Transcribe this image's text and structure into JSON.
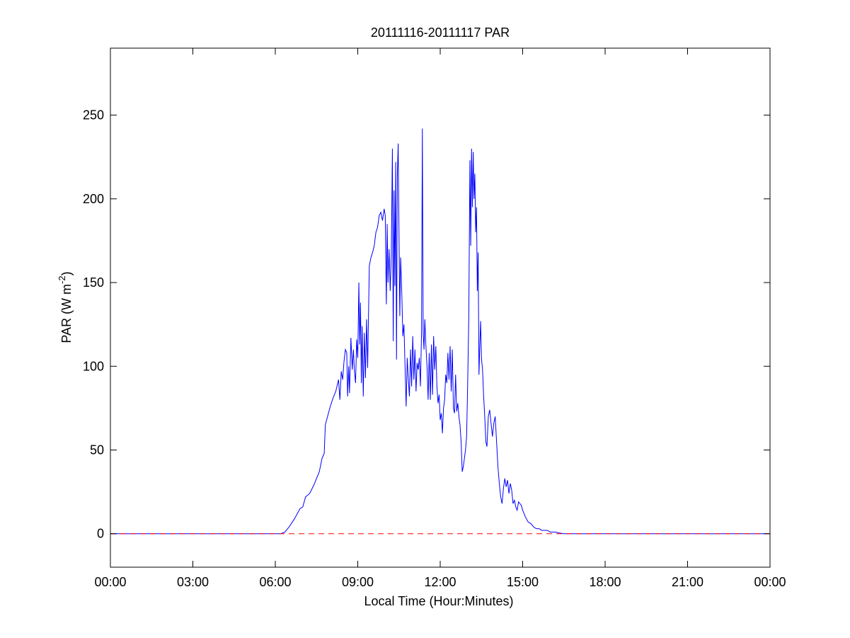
{
  "chart_data": {
    "type": "line",
    "title": "20111116-20111117 PAR",
    "xlabel": "Local Time (Hour:Minutes)",
    "ylabel": {
      "main": "PAR (W m",
      "superscript": "-2",
      "close": ")"
    },
    "x_unit": "hours",
    "xlim": [
      0,
      24
    ],
    "ylim": [
      -20,
      290
    ],
    "x_ticks": [
      0,
      3,
      6,
      9,
      12,
      15,
      18,
      21,
      24
    ],
    "x_tick_labels": [
      "00:00",
      "03:00",
      "06:00",
      "09:00",
      "12:00",
      "15:00",
      "18:00",
      "21:00",
      "00:00"
    ],
    "y_ticks": [
      0,
      50,
      100,
      150,
      200,
      250
    ],
    "y_tick_labels": [
      "0",
      "50",
      "100",
      "150",
      "200",
      "250"
    ],
    "grid": false,
    "series": [
      {
        "color": "#0000ff",
        "style": "solid",
        "points": [
          [
            0,
            0
          ],
          [
            6.2,
            0
          ],
          [
            6.35,
            1
          ],
          [
            6.5,
            4
          ],
          [
            6.7,
            9
          ],
          [
            6.9,
            15
          ],
          [
            7.0,
            16
          ],
          [
            7.1,
            22
          ],
          [
            7.25,
            24
          ],
          [
            7.4,
            29
          ],
          [
            7.5,
            33
          ],
          [
            7.6,
            37
          ],
          [
            7.7,
            45
          ],
          [
            7.78,
            48
          ],
          [
            7.82,
            65
          ],
          [
            7.9,
            70
          ],
          [
            8.0,
            76
          ],
          [
            8.1,
            81
          ],
          [
            8.2,
            85
          ],
          [
            8.3,
            92
          ],
          [
            8.35,
            80
          ],
          [
            8.4,
            97
          ],
          [
            8.45,
            92
          ],
          [
            8.5,
            103
          ],
          [
            8.55,
            110
          ],
          [
            8.6,
            108
          ],
          [
            8.63,
            82
          ],
          [
            8.67,
            100
          ],
          [
            8.7,
            84
          ],
          [
            8.75,
            117
          ],
          [
            8.8,
            98
          ],
          [
            8.84,
            110
          ],
          [
            8.88,
            97
          ],
          [
            8.92,
            90
          ],
          [
            8.96,
            116
          ],
          [
            9.0,
            105
          ],
          [
            9.04,
            150
          ],
          [
            9.07,
            113
          ],
          [
            9.1,
            138
          ],
          [
            9.13,
            90
          ],
          [
            9.16,
            124
          ],
          [
            9.2,
            82
          ],
          [
            9.24,
            120
          ],
          [
            9.28,
            93
          ],
          [
            9.32,
            128
          ],
          [
            9.36,
            99
          ],
          [
            9.42,
            160
          ],
          [
            9.48,
            165
          ],
          [
            9.54,
            168
          ],
          [
            9.6,
            172
          ],
          [
            9.66,
            180
          ],
          [
            9.72,
            183
          ],
          [
            9.78,
            190
          ],
          [
            9.84,
            192
          ],
          [
            9.9,
            187
          ],
          [
            9.96,
            194
          ],
          [
            10.0,
            190
          ],
          [
            10.04,
            137
          ],
          [
            10.07,
            185
          ],
          [
            10.1,
            150
          ],
          [
            10.14,
            170
          ],
          [
            10.18,
            145
          ],
          [
            10.22,
            166
          ],
          [
            10.26,
            230
          ],
          [
            10.29,
            115
          ],
          [
            10.32,
            205
          ],
          [
            10.35,
            148
          ],
          [
            10.38,
            222
          ],
          [
            10.41,
            104
          ],
          [
            10.44,
            214
          ],
          [
            10.47,
            233
          ],
          [
            10.5,
            180
          ],
          [
            10.53,
            130
          ],
          [
            10.56,
            165
          ],
          [
            10.6,
            145
          ],
          [
            10.64,
            118
          ],
          [
            10.68,
            125
          ],
          [
            10.72,
            100
          ],
          [
            10.76,
            76
          ],
          [
            10.8,
            105
          ],
          [
            10.84,
            92
          ],
          [
            10.88,
            82
          ],
          [
            10.92,
            110
          ],
          [
            10.96,
            88
          ],
          [
            11.0,
            118
          ],
          [
            11.04,
            92
          ],
          [
            11.08,
            110
          ],
          [
            11.12,
            85
          ],
          [
            11.16,
            102
          ],
          [
            11.2,
            98
          ],
          [
            11.24,
            105
          ],
          [
            11.28,
            88
          ],
          [
            11.32,
            120
          ],
          [
            11.35,
            242
          ],
          [
            11.38,
            120
          ],
          [
            11.41,
            110
          ],
          [
            11.44,
            128
          ],
          [
            11.48,
            112
          ],
          [
            11.52,
            100
          ],
          [
            11.56,
            80
          ],
          [
            11.6,
            108
          ],
          [
            11.64,
            80
          ],
          [
            11.68,
            113
          ],
          [
            11.72,
            83
          ],
          [
            11.76,
            118
          ],
          [
            11.8,
            98
          ],
          [
            11.84,
            112
          ],
          [
            11.88,
            88
          ],
          [
            11.92,
            78
          ],
          [
            11.96,
            83
          ],
          [
            12.0,
            68
          ],
          [
            12.04,
            72
          ],
          [
            12.08,
            60
          ],
          [
            12.12,
            75
          ],
          [
            12.16,
            80
          ],
          [
            12.2,
            95
          ],
          [
            12.24,
            90
          ],
          [
            12.28,
            108
          ],
          [
            12.32,
            92
          ],
          [
            12.36,
            112
          ],
          [
            12.4,
            85
          ],
          [
            12.44,
            110
          ],
          [
            12.48,
            75
          ],
          [
            12.52,
            72
          ],
          [
            12.56,
            95
          ],
          [
            12.6,
            73
          ],
          [
            12.64,
            78
          ],
          [
            12.68,
            70
          ],
          [
            12.72,
            65
          ],
          [
            12.76,
            55
          ],
          [
            12.8,
            37
          ],
          [
            12.84,
            40
          ],
          [
            12.88,
            45
          ],
          [
            12.92,
            50
          ],
          [
            12.96,
            58
          ],
          [
            13.0,
            90
          ],
          [
            13.04,
            130
          ],
          [
            13.08,
            223
          ],
          [
            13.11,
            172
          ],
          [
            13.14,
            230
          ],
          [
            13.17,
            195
          ],
          [
            13.2,
            228
          ],
          [
            13.23,
            200
          ],
          [
            13.26,
            215
          ],
          [
            13.29,
            180
          ],
          [
            13.32,
            195
          ],
          [
            13.35,
            145
          ],
          [
            13.38,
            168
          ],
          [
            13.41,
            95
          ],
          [
            13.44,
            112
          ],
          [
            13.47,
            127
          ],
          [
            13.5,
            105
          ],
          [
            13.54,
            98
          ],
          [
            13.58,
            82
          ],
          [
            13.62,
            70
          ],
          [
            13.66,
            55
          ],
          [
            13.7,
            52
          ],
          [
            13.75,
            70
          ],
          [
            13.8,
            74
          ],
          [
            13.85,
            66
          ],
          [
            13.9,
            58
          ],
          [
            13.95,
            66
          ],
          [
            14.0,
            70
          ],
          [
            14.05,
            55
          ],
          [
            14.1,
            40
          ],
          [
            14.15,
            30
          ],
          [
            14.2,
            22
          ],
          [
            14.25,
            18
          ],
          [
            14.3,
            27
          ],
          [
            14.35,
            33
          ],
          [
            14.4,
            28
          ],
          [
            14.45,
            32
          ],
          [
            14.5,
            24
          ],
          [
            14.55,
            30
          ],
          [
            14.6,
            26
          ],
          [
            14.65,
            18
          ],
          [
            14.7,
            20
          ],
          [
            14.75,
            16
          ],
          [
            14.8,
            14
          ],
          [
            14.85,
            19
          ],
          [
            14.9,
            18
          ],
          [
            14.95,
            17
          ],
          [
            15.0,
            14
          ],
          [
            15.1,
            10
          ],
          [
            15.2,
            7
          ],
          [
            15.3,
            6
          ],
          [
            15.4,
            4
          ],
          [
            15.5,
            3
          ],
          [
            15.6,
            3
          ],
          [
            15.7,
            2
          ],
          [
            15.8,
            2
          ],
          [
            15.9,
            2
          ],
          [
            16.0,
            1
          ],
          [
            16.1,
            1
          ],
          [
            16.2,
            1
          ],
          [
            16.3,
            0.5
          ],
          [
            16.5,
            0
          ],
          [
            24,
            0
          ]
        ]
      },
      {
        "color": "#ff0000",
        "style": "dashed",
        "points": [
          [
            0,
            0
          ],
          [
            24,
            0
          ]
        ]
      }
    ]
  }
}
